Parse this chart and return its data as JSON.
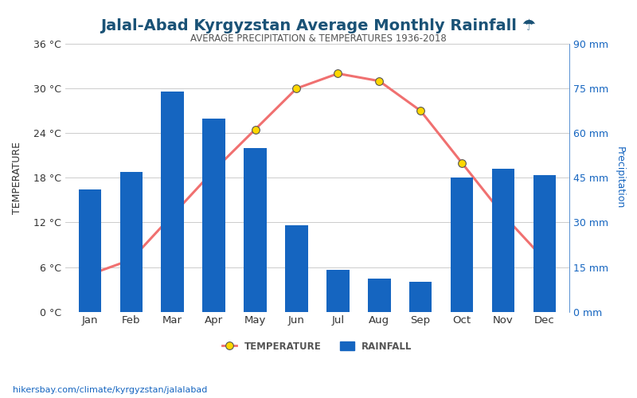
{
  "months": [
    "Jan",
    "Feb",
    "Mar",
    "Apr",
    "May",
    "Jun",
    "Jul",
    "Aug",
    "Sep",
    "Oct",
    "Nov",
    "Dec"
  ],
  "rainfall_mm": [
    41,
    47,
    74,
    65,
    55,
    29,
    14,
    11,
    10,
    45,
    48,
    46
  ],
  "temperature_c": [
    5.0,
    7.0,
    13.0,
    19.0,
    24.5,
    30.0,
    32.0,
    31.0,
    27.0,
    20.0,
    13.0,
    7.0
  ],
  "title": "Jalal-Abad Kyrgyzstan Average Monthly Rainfall ☂",
  "subtitle": "AVERAGE PRECIPITATION & TEMPERATURES 1936-2018",
  "ylabel_left": "TEMPERATURE",
  "ylabel_right": "Precipitation",
  "left_ticks": [
    0,
    6,
    12,
    18,
    24,
    30,
    36
  ],
  "left_tick_labels": [
    "0 °C",
    "6 °C",
    "12 °C",
    "18 °C",
    "24 °C",
    "30 °C",
    "36 °C"
  ],
  "right_ticks": [
    0,
    15,
    30,
    45,
    60,
    75,
    90
  ],
  "right_tick_labels": [
    "0 mm",
    "15 mm",
    "30 mm",
    "45 mm",
    "60 mm",
    "75 mm",
    "90 mm"
  ],
  "bar_color": "#1565c0",
  "line_color": "#f07070",
  "marker_face_color": "#FFD700",
  "marker_edge_color": "#555555",
  "title_color": "#1a5276",
  "subtitle_color": "#555555",
  "right_label_color": "#1565c0",
  "left_label_color": "#333333",
  "background_color": "#ffffff",
  "footer_text": "hikersbay.com/climate/kyrgyzstan/jalalabad",
  "legend_temp_label": "TEMPERATURE",
  "legend_rain_label": "RAINFALL"
}
